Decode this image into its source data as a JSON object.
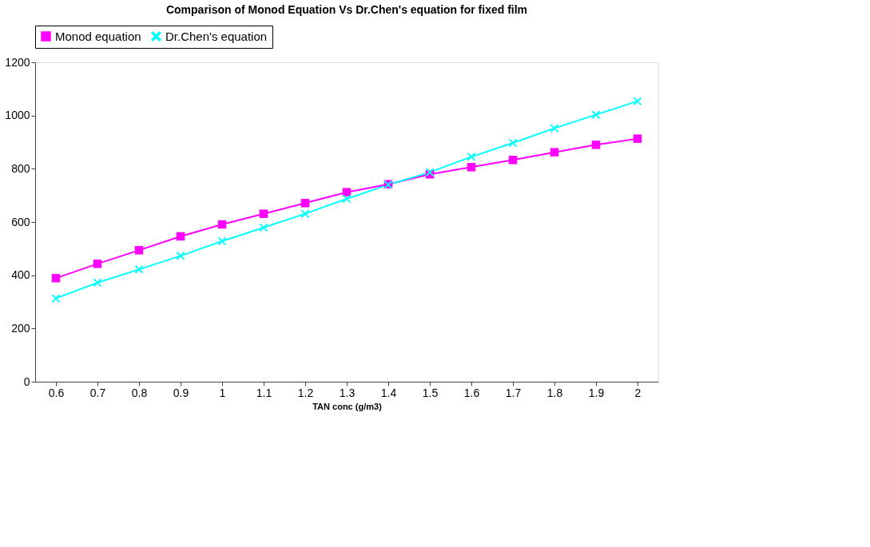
{
  "chart_data": {
    "type": "line",
    "title": "Comparison of Monod Equation Vs Dr.Chen's equation for fixed film",
    "xlabel": "TAN conc (g/m3)",
    "categories": [
      "0.6",
      "0.7",
      "0.8",
      "0.9",
      "1",
      "1.1",
      "1.2",
      "1.3",
      "1.4",
      "1.5",
      "1.6",
      "1.7",
      "1.8",
      "1.9",
      "2"
    ],
    "series": [
      {
        "name": "Monod equation",
        "color": "#ff00ff",
        "marker": "square",
        "values": [
          389,
          443,
          494,
          546,
          591,
          631,
          671,
          712,
          742,
          779,
          806,
          833,
          862,
          890,
          913
        ]
      },
      {
        "name": "Dr.Chen's equation",
        "color": "#00ffff",
        "marker": "cross",
        "values": [
          313,
          372,
          422,
          473,
          528,
          579,
          631,
          687,
          740,
          787,
          845,
          897,
          952,
          1003,
          1054
        ]
      }
    ],
    "ylim": [
      0,
      1200
    ],
    "yticks": [
      0,
      200,
      400,
      600,
      800,
      1000,
      1200
    ],
    "grid": false,
    "legend": "top",
    "line_style": "solid"
  }
}
